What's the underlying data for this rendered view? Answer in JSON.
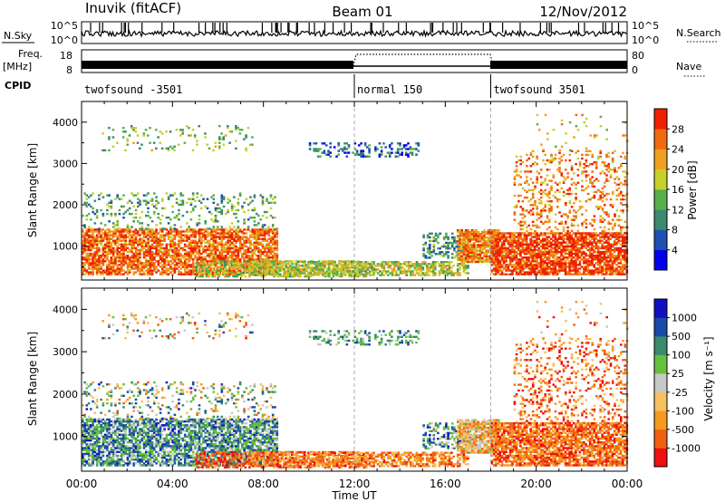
{
  "header": {
    "station": "Inuvik (fitACF)",
    "beam": "Beam 01",
    "date": "12/Nov/2012"
  },
  "top_panels": {
    "nsky_label": "N.Sky",
    "nsky_ticks": [
      "10^5",
      "10^0"
    ],
    "nsearch_label": "N.Search",
    "nsearch_ticks": [
      "10^5",
      "10^0"
    ],
    "freq_label_1": "Freq.",
    "freq_label_2": "[MHz]",
    "freq_ticks": [
      "18",
      "8"
    ],
    "nave_label": "Nave",
    "nave_ticks": [
      "80",
      "0"
    ],
    "cpid_label": "CPID",
    "cpid_segments": [
      {
        "label": "twofsound -3501",
        "start_hr": 0,
        "end_hr": 12
      },
      {
        "label": "normal 150",
        "start_hr": 12,
        "end_hr": 18
      },
      {
        "label": "twofsound 3501",
        "start_hr": 18,
        "end_hr": 24
      }
    ]
  },
  "colors": {
    "power": [
      "#0000ee",
      "#1f4fb0",
      "#3d8a6e",
      "#58b04a",
      "#c6d02a",
      "#f0a020",
      "#f06a10",
      "#ee2000"
    ],
    "velocity": [
      "#ee1010",
      "#f06010",
      "#f59a20",
      "#f7c060",
      "#c8c8c8",
      "#66c040",
      "#3a8a6e",
      "#1a4aa8",
      "#1010c0"
    ]
  },
  "chart_data": [
    {
      "type": "heatmap",
      "panel": "power",
      "title": "",
      "xlabel": "Time UT",
      "ylabel": "Slant Range [km]",
      "x_ticks": [
        "00:00",
        "04:00",
        "08:00",
        "12:00",
        "16:00",
        "20:00",
        "00:00"
      ],
      "xlim_hours": [
        0,
        24
      ],
      "ylim_km": [
        180,
        4500
      ],
      "y_ticks": [
        1000,
        2000,
        3000,
        4000
      ],
      "colorbar": {
        "label": "Power [dB]",
        "ticks": [
          4,
          8,
          12,
          16,
          20,
          24,
          28
        ],
        "range": [
          0,
          32
        ]
      },
      "mode_boundaries_hr": [
        12,
        18
      ]
    },
    {
      "type": "heatmap",
      "panel": "velocity",
      "title": "",
      "xlabel": "Time UT",
      "ylabel": "Slant Range [km]",
      "x_ticks": [
        "00:00",
        "04:00",
        "08:00",
        "12:00",
        "16:00",
        "20:00",
        "00:00"
      ],
      "xlim_hours": [
        0,
        24
      ],
      "ylim_km": [
        180,
        4500
      ],
      "y_ticks": [
        1000,
        2000,
        3000,
        4000
      ],
      "colorbar": {
        "label": "Velocity [m s⁻¹]",
        "ticks": [
          -1000,
          -500,
          -100,
          -25,
          25,
          100,
          500,
          1000
        ]
      },
      "mode_boundaries_hr": [
        12,
        18
      ]
    }
  ]
}
